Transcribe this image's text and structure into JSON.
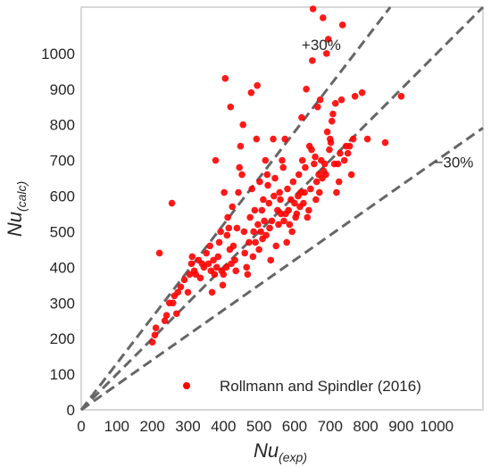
{
  "chart_data": {
    "type": "scatter",
    "xlabel_main": "Nu",
    "xlabel_sub": "(exp)",
    "ylabel_main": "Nu",
    "ylabel_sub": "(calc)",
    "xlim": [
      0,
      1130
    ],
    "ylim": [
      0,
      1130
    ],
    "x_ticks": [
      0,
      100,
      200,
      300,
      400,
      500,
      600,
      700,
      800,
      900,
      1000
    ],
    "x_tick_labels": [
      "0",
      "100",
      "200",
      "300",
      "400",
      "500",
      "600",
      "700",
      "800",
      "900",
      "1000"
    ],
    "y_ticks": [
      0,
      100,
      200,
      300,
      400,
      500,
      600,
      700,
      800,
      900,
      1000
    ],
    "y_tick_labels": [
      "0",
      "100",
      "200",
      "300",
      "400",
      "500",
      "600",
      "700",
      "800",
      "900",
      "1000"
    ],
    "grid": false,
    "legend_position": "bottom-right",
    "reference_lines": [
      {
        "slope": 1.3,
        "label": "+30%"
      },
      {
        "slope": 1.0,
        "label": ""
      },
      {
        "slope": 0.7,
        "label": "−30%"
      }
    ],
    "series": [
      {
        "name": "Rollmann and Spindler (2016)",
        "color": "#ff0000",
        "points": [
          [
            200,
            190
          ],
          [
            207,
            210
          ],
          [
            210,
            230
          ],
          [
            220,
            440
          ],
          [
            235,
            250
          ],
          [
            240,
            265
          ],
          [
            248,
            300
          ],
          [
            255,
            580
          ],
          [
            258,
            300
          ],
          [
            262,
            320
          ],
          [
            268,
            270
          ],
          [
            272,
            330
          ],
          [
            280,
            345
          ],
          [
            290,
            365
          ],
          [
            300,
            330
          ],
          [
            305,
            380
          ],
          [
            310,
            410
          ],
          [
            312,
            430
          ],
          [
            318,
            390
          ],
          [
            322,
            380
          ],
          [
            330,
            420
          ],
          [
            335,
            370
          ],
          [
            340,
            410
          ],
          [
            345,
            400
          ],
          [
            352,
            440
          ],
          [
            358,
            410
          ],
          [
            362,
            460
          ],
          [
            365,
            390
          ],
          [
            368,
            330
          ],
          [
            372,
            420
          ],
          [
            375,
            380
          ],
          [
            378,
            700
          ],
          [
            381,
            400
          ],
          [
            385,
            430
          ],
          [
            388,
            470
          ],
          [
            392,
            500
          ],
          [
            395,
            390
          ],
          [
            398,
            350
          ],
          [
            400,
            380
          ],
          [
            402,
            610
          ],
          [
            405,
            930
          ],
          [
            408,
            400
          ],
          [
            410,
            490
          ],
          [
            412,
            540
          ],
          [
            415,
            510
          ],
          [
            418,
            450
          ],
          [
            420,
            850
          ],
          [
            422,
            410
          ],
          [
            425,
            570
          ],
          [
            428,
            460
          ],
          [
            432,
            420
          ],
          [
            435,
            390
          ],
          [
            438,
            510
          ],
          [
            442,
            610
          ],
          [
            445,
            680
          ],
          [
            448,
            740
          ],
          [
            452,
            660
          ],
          [
            455,
            800
          ],
          [
            458,
            500
          ],
          [
            460,
            440
          ],
          [
            465,
            400
          ],
          [
            468,
            380
          ],
          [
            472,
            470
          ],
          [
            475,
            540
          ],
          [
            478,
            890
          ],
          [
            480,
            620
          ],
          [
            483,
            430
          ],
          [
            485,
            500
          ],
          [
            488,
            560
          ],
          [
            490,
            470
          ],
          [
            493,
            760
          ],
          [
            495,
            910
          ],
          [
            497,
            520
          ],
          [
            500,
            450
          ],
          [
            502,
            640
          ],
          [
            505,
            500
          ],
          [
            508,
            560
          ],
          [
            510,
            480
          ],
          [
            512,
            590
          ],
          [
            515,
            530
          ],
          [
            518,
            700
          ],
          [
            520,
            490
          ],
          [
            523,
            660
          ],
          [
            525,
            630
          ],
          [
            528,
            580
          ],
          [
            530,
            510
          ],
          [
            533,
            420
          ],
          [
            536,
            530
          ],
          [
            540,
            760
          ],
          [
            542,
            600
          ],
          [
            545,
            650
          ],
          [
            548,
            460
          ],
          [
            552,
            560
          ],
          [
            555,
            520
          ],
          [
            558,
            610
          ],
          [
            560,
            590
          ],
          [
            562,
            550
          ],
          [
            565,
            700
          ],
          [
            568,
            680
          ],
          [
            570,
            530
          ],
          [
            573,
            760
          ],
          [
            575,
            550
          ],
          [
            578,
            470
          ],
          [
            580,
            620
          ],
          [
            583,
            560
          ],
          [
            586,
            520
          ],
          [
            590,
            590
          ],
          [
            593,
            500
          ],
          [
            596,
            640
          ],
          [
            600,
            580
          ],
          [
            603,
            540
          ],
          [
            606,
            550
          ],
          [
            610,
            600
          ],
          [
            612,
            660
          ],
          [
            615,
            570
          ],
          [
            618,
            610
          ],
          [
            620,
            820
          ],
          [
            622,
            700
          ],
          [
            625,
            580
          ],
          [
            628,
            610
          ],
          [
            630,
            680
          ],
          [
            633,
            900
          ],
          [
            636,
            540
          ],
          [
            640,
            560
          ],
          [
            642,
            740
          ],
          [
            645,
            620
          ],
          [
            648,
            730
          ],
          [
            650,
            980
          ],
          [
            652,
            1125
          ],
          [
            655,
            690
          ],
          [
            658,
            710
          ],
          [
            660,
            590
          ],
          [
            662,
            640
          ],
          [
            665,
            850
          ],
          [
            668,
            660
          ],
          [
            670,
            610
          ],
          [
            672,
            870
          ],
          [
            675,
            700
          ],
          [
            678,
            650
          ],
          [
            680,
            1100
          ],
          [
            682,
            670
          ],
          [
            685,
            690
          ],
          [
            688,
            660
          ],
          [
            690,
            1000
          ],
          [
            692,
            780
          ],
          [
            695,
            1040
          ],
          [
            698,
            730
          ],
          [
            700,
            760
          ],
          [
            702,
            750
          ],
          [
            705,
            810
          ],
          [
            708,
            830
          ],
          [
            712,
            690
          ],
          [
            715,
            860
          ],
          [
            718,
            610
          ],
          [
            722,
            690
          ],
          [
            725,
            640
          ],
          [
            728,
            720
          ],
          [
            732,
            870
          ],
          [
            735,
            1080
          ],
          [
            740,
            700
          ],
          [
            745,
            740
          ],
          [
            750,
            720
          ],
          [
            755,
            740
          ],
          [
            760,
            660
          ],
          [
            765,
            760
          ],
          [
            770,
            880
          ],
          [
            790,
            890
          ],
          [
            805,
            760
          ],
          [
            855,
            750
          ],
          [
            900,
            880
          ]
        ]
      }
    ]
  }
}
